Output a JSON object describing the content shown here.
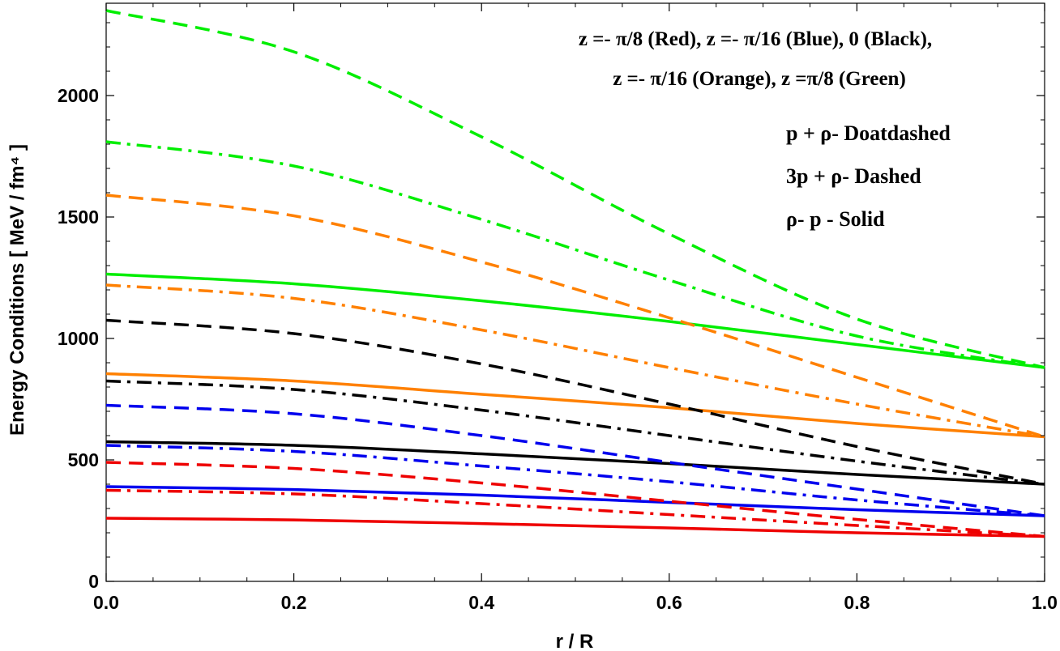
{
  "chart_data": {
    "type": "line",
    "xlabel": "r / R",
    "ylabel": "Energy  Conditions [ MeV / fm⁴ ]",
    "xlim": [
      0,
      1
    ],
    "ylim": [
      0,
      2380
    ],
    "xticks": [
      "0.0",
      "0.2",
      "0.4",
      "0.6",
      "0.8",
      "1.0"
    ],
    "yticks": [
      "0",
      "500",
      "1000",
      "1500",
      "2000"
    ],
    "x": [
      0.0,
      0.2,
      0.4,
      0.6,
      0.8,
      1.0
    ],
    "annotations": [
      "z =- π/8 (Red), z =- π/16 (Blue), 0 (Black),",
      "z =- π/16 (Orange), z =π/8 (Green)",
      "p + ρ-  Doatdashed",
      "3p + ρ-  Dashed",
      "ρ-  p -  Solid"
    ],
    "series": [
      {
        "color": "#00ee00",
        "style": "dashed",
        "values": [
          2350,
          2180,
          1830,
          1430,
          1080,
          880
        ]
      },
      {
        "color": "#00ee00",
        "style": "dashdot",
        "values": [
          1810,
          1710,
          1490,
          1240,
          1010,
          880
        ]
      },
      {
        "color": "#00ee00",
        "style": "solid",
        "values": [
          1265,
          1225,
          1155,
          1070,
          975,
          880
        ]
      },
      {
        "color": "#ff8000",
        "style": "dashed",
        "values": [
          1590,
          1505,
          1315,
          1085,
          840,
          595
        ]
      },
      {
        "color": "#ff8000",
        "style": "dashdot",
        "values": [
          1220,
          1165,
          1035,
          880,
          730,
          595
        ]
      },
      {
        "color": "#ff8000",
        "style": "solid",
        "values": [
          855,
          825,
          770,
          715,
          650,
          595
        ]
      },
      {
        "color": "#000000",
        "style": "dashed",
        "values": [
          1075,
          1020,
          895,
          730,
          555,
          400
        ]
      },
      {
        "color": "#000000",
        "style": "dashdot",
        "values": [
          825,
          790,
          705,
          600,
          495,
          400
        ]
      },
      {
        "color": "#000000",
        "style": "solid",
        "values": [
          575,
          560,
          525,
          485,
          440,
          400
        ]
      },
      {
        "color": "#0000ee",
        "style": "dashed",
        "values": [
          725,
          690,
          600,
          490,
          380,
          270
        ]
      },
      {
        "color": "#0000ee",
        "style": "dashdot",
        "values": [
          560,
          535,
          475,
          410,
          335,
          270
        ]
      },
      {
        "color": "#0000ee",
        "style": "solid",
        "values": [
          390,
          378,
          355,
          325,
          295,
          270
        ]
      },
      {
        "color": "#ee0000",
        "style": "dashed",
        "values": [
          490,
          465,
          405,
          330,
          255,
          185
        ]
      },
      {
        "color": "#ee0000",
        "style": "dashdot",
        "values": [
          375,
          360,
          320,
          275,
          230,
          185
        ]
      },
      {
        "color": "#ee0000",
        "style": "solid",
        "values": [
          260,
          253,
          238,
          220,
          200,
          185
        ]
      }
    ]
  }
}
